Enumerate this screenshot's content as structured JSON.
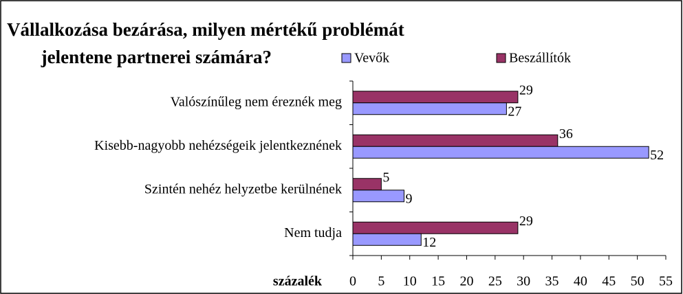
{
  "chart_data": {
    "type": "bar",
    "orientation": "horizontal",
    "title": [
      "Vállalkozása bezárása, milyen mértékű problémát",
      "jelentene partnerei számára?"
    ],
    "categories": [
      "Valószínűleg nem éreznék meg",
      "Kisebb-nagyobb nehézségeik jelentkeznének",
      "Szintén nehéz helyzetbe kerülnének",
      "Nem tudja"
    ],
    "series": [
      {
        "name": "Vevők",
        "color": "#9999ff",
        "values": [
          27,
          52,
          9,
          12
        ]
      },
      {
        "name": "Beszállítók",
        "color": "#993366",
        "values": [
          29,
          36,
          5,
          29
        ]
      }
    ],
    "x_label": "százalék",
    "xlim": [
      0,
      55
    ],
    "xticks": [
      0,
      5,
      10,
      15,
      20,
      25,
      30,
      35,
      40,
      45,
      50,
      55
    ],
    "grid": false,
    "legend": "top"
  }
}
